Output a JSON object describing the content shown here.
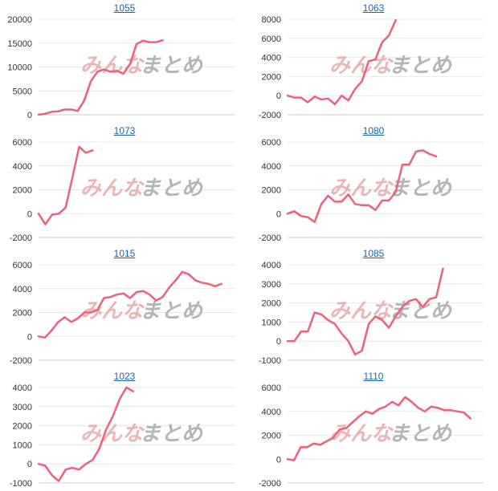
{
  "line_color": "#f0607a",
  "grid_color": "#e8e8e8",
  "axis_color": "#cccccc",
  "link_color": "#1565c0",
  "watermark": {
    "left_text": "みんな",
    "right_text": "まとめ",
    "left_color": "#e8a9ab",
    "right_color": "#a9a9a9"
  },
  "chart_data": [
    {
      "type": "line",
      "title": "1055",
      "ylim": [
        0,
        20000
      ],
      "yticks": [
        0,
        5000,
        10000,
        15000,
        20000
      ],
      "x_count": 31,
      "grid": true,
      "series": [
        {
          "values": [
            0,
            200,
            600,
            700,
            1100,
            1100,
            800,
            3000,
            7000,
            9000,
            9500,
            9000,
            9200,
            8600,
            10600,
            14800,
            15500,
            15200,
            15200,
            15600
          ]
        }
      ]
    },
    {
      "type": "line",
      "title": "1063",
      "ylim": [
        -2000,
        8000
      ],
      "yticks": [
        -2000,
        0,
        2000,
        4000,
        6000,
        8000
      ],
      "x_count": 30,
      "grid": true,
      "series": [
        {
          "values": [
            0,
            -200,
            -200,
            -700,
            -100,
            -400,
            -300,
            -900,
            0,
            -500,
            700,
            1500,
            3600,
            3800,
            5600,
            6300,
            7900
          ]
        }
      ]
    },
    {
      "type": "line",
      "title": "1073",
      "ylim": [
        -2000,
        6000
      ],
      "yticks": [
        -2000,
        0,
        2000,
        4000,
        6000
      ],
      "x_count": 30,
      "grid": true,
      "series": [
        {
          "values": [
            0,
            -900,
            -100,
            0,
            500,
            3000,
            5600,
            5100,
            5300
          ]
        }
      ]
    },
    {
      "type": "line",
      "title": "1080",
      "ylim": [
        -2000,
        6000
      ],
      "yticks": [
        -2000,
        0,
        2000,
        4000,
        6000
      ],
      "x_count": 30,
      "grid": true,
      "series": [
        {
          "values": [
            0,
            200,
            -200,
            -300,
            -700,
            800,
            1500,
            1000,
            1000,
            1600,
            800,
            700,
            700,
            300,
            1100,
            1100,
            1800,
            4100,
            4100,
            5200,
            5300,
            5000,
            4800
          ]
        }
      ]
    },
    {
      "type": "line",
      "title": "1015",
      "ylim": [
        -2000,
        6000
      ],
      "yticks": [
        -2000,
        0,
        2000,
        4000,
        6000
      ],
      "x_count": 31,
      "grid": true,
      "series": [
        {
          "values": [
            0,
            -100,
            500,
            1200,
            1600,
            1200,
            1500,
            2000,
            2000,
            2200,
            3200,
            3300,
            3500,
            3600,
            3200,
            3700,
            3800,
            3500,
            3000,
            3300,
            4100,
            4700,
            5400,
            5200,
            4700,
            4500,
            4400,
            4200,
            4400
          ]
        }
      ]
    },
    {
      "type": "line",
      "title": "1085",
      "ylim": [
        -1000,
        4000
      ],
      "yticks": [
        -1000,
        0,
        1000,
        2000,
        3000,
        4000
      ],
      "x_count": 30,
      "grid": true,
      "series": [
        {
          "values": [
            0,
            0,
            500,
            500,
            1500,
            1400,
            1100,
            900,
            400,
            0,
            -700,
            -500,
            900,
            1300,
            1100,
            700,
            1300,
            1800,
            2100,
            2200,
            1800,
            2200,
            2300,
            3800
          ]
        }
      ]
    },
    {
      "type": "line",
      "title": "1023",
      "ylim": [
        -1000,
        4000
      ],
      "yticks": [
        -1000,
        0,
        1000,
        2000,
        3000,
        4000
      ],
      "x_count": 30,
      "grid": true,
      "series": [
        {
          "values": [
            0,
            -100,
            -600,
            -900,
            -300,
            -200,
            -300,
            0,
            200,
            800,
            1800,
            2500,
            3400,
            4000,
            3800
          ]
        }
      ]
    },
    {
      "type": "line",
      "title": "1110",
      "ylim": [
        -2000,
        6000
      ],
      "yticks": [
        -2000,
        0,
        2000,
        4000,
        6000
      ],
      "x_count": 31,
      "grid": true,
      "series": [
        {
          "values": [
            0,
            -100,
            1000,
            1000,
            1300,
            1200,
            1500,
            1800,
            2500,
            2600,
            3100,
            3600,
            4000,
            3800,
            4200,
            4400,
            4800,
            4500,
            5200,
            4800,
            4300,
            4000,
            4400,
            4300,
            4100,
            4100,
            4000,
            3900,
            3400
          ]
        }
      ]
    }
  ]
}
